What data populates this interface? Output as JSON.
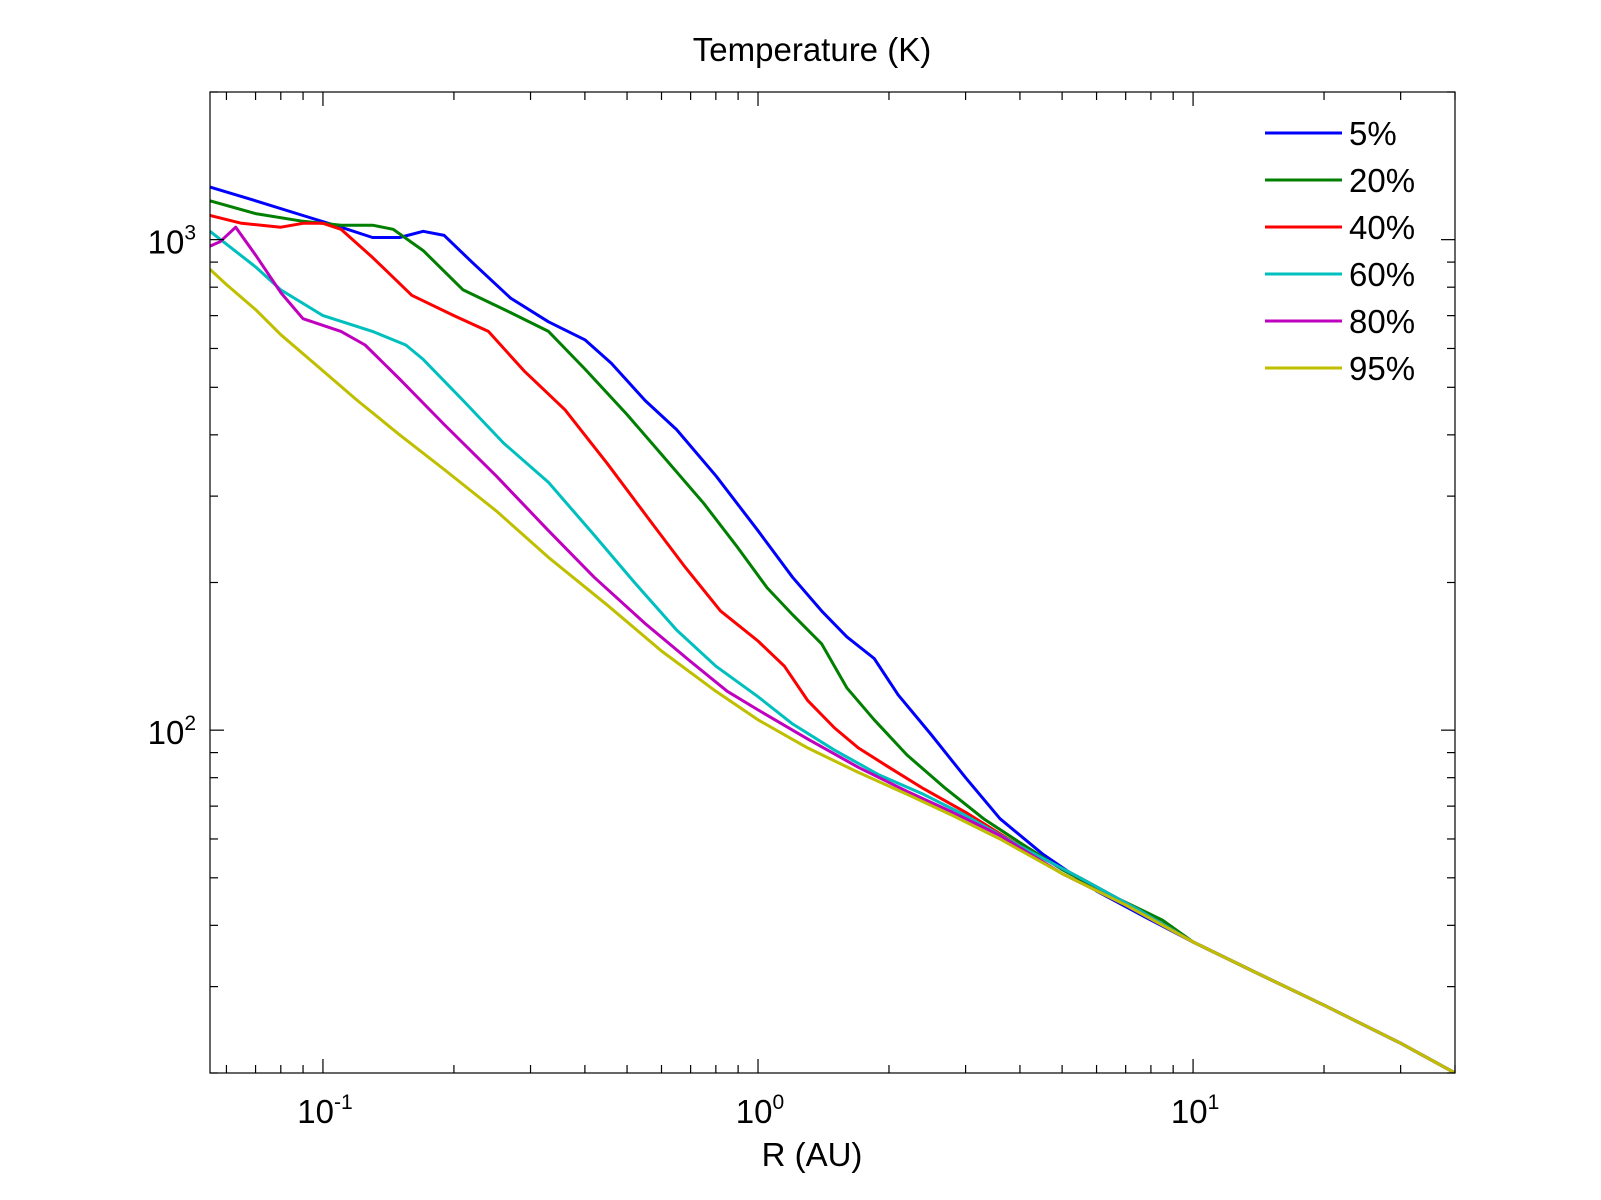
{
  "chart_data": {
    "type": "line",
    "title": "Temperature (K)",
    "xlabel": "R (AU)",
    "ylabel": "",
    "xscale": "log",
    "yscale": "log",
    "xlim": [
      0.055,
      40
    ],
    "ylim": [
      20,
      2000
    ],
    "x_ticks": [
      {
        "base": "10",
        "exp": "-1",
        "value": 0.1
      },
      {
        "base": "10",
        "exp": "0",
        "value": 1
      },
      {
        "base": "10",
        "exp": "1",
        "value": 10
      }
    ],
    "y_ticks": [
      {
        "base": "10",
        "exp": "2",
        "value": 100
      },
      {
        "base": "10",
        "exp": "3",
        "value": 1000
      }
    ],
    "legend_position": "top-right",
    "series": [
      {
        "name": "5%",
        "color": "#0000ff",
        "points": [
          [
            0.055,
            1280
          ],
          [
            0.07,
            1200
          ],
          [
            0.09,
            1120
          ],
          [
            0.11,
            1060
          ],
          [
            0.13,
            1010
          ],
          [
            0.15,
            1010
          ],
          [
            0.17,
            1040
          ],
          [
            0.19,
            1020
          ],
          [
            0.22,
            900
          ],
          [
            0.27,
            760
          ],
          [
            0.33,
            680
          ],
          [
            0.4,
            625
          ],
          [
            0.46,
            560
          ],
          [
            0.55,
            470
          ],
          [
            0.65,
            410
          ],
          [
            0.8,
            330
          ],
          [
            1.0,
            255
          ],
          [
            1.2,
            205
          ],
          [
            1.4,
            175
          ],
          [
            1.6,
            155
          ],
          [
            1.85,
            140
          ],
          [
            2.1,
            118
          ],
          [
            2.5,
            98
          ],
          [
            3.0,
            80
          ],
          [
            3.6,
            66
          ],
          [
            4.5,
            56
          ],
          [
            6.0,
            47
          ],
          [
            8.0,
            41
          ],
          [
            10.0,
            37
          ],
          [
            14.0,
            32
          ],
          [
            20.0,
            27.5
          ],
          [
            30.0,
            23
          ],
          [
            40.0,
            20
          ]
        ]
      },
      {
        "name": "20%",
        "color": "#007f00",
        "points": [
          [
            0.055,
            1200
          ],
          [
            0.07,
            1130
          ],
          [
            0.09,
            1090
          ],
          [
            0.11,
            1070
          ],
          [
            0.13,
            1070
          ],
          [
            0.145,
            1050
          ],
          [
            0.17,
            950
          ],
          [
            0.21,
            790
          ],
          [
            0.27,
            710
          ],
          [
            0.33,
            650
          ],
          [
            0.4,
            545
          ],
          [
            0.5,
            440
          ],
          [
            0.6,
            365
          ],
          [
            0.75,
            290
          ],
          [
            0.9,
            235
          ],
          [
            1.05,
            195
          ],
          [
            1.2,
            172
          ],
          [
            1.4,
            150
          ],
          [
            1.6,
            122
          ],
          [
            1.85,
            105
          ],
          [
            2.2,
            89
          ],
          [
            2.7,
            76
          ],
          [
            3.3,
            66
          ],
          [
            4.0,
            59
          ],
          [
            5.0,
            52
          ],
          [
            6.5,
            46
          ],
          [
            8.5,
            41
          ],
          [
            10.0,
            37
          ],
          [
            14.0,
            32
          ],
          [
            20.0,
            27.5
          ],
          [
            30.0,
            23
          ],
          [
            40.0,
            20
          ]
        ]
      },
      {
        "name": "40%",
        "color": "#ff0000",
        "points": [
          [
            0.055,
            1120
          ],
          [
            0.065,
            1080
          ],
          [
            0.08,
            1060
          ],
          [
            0.09,
            1080
          ],
          [
            0.1,
            1080
          ],
          [
            0.11,
            1050
          ],
          [
            0.13,
            920
          ],
          [
            0.16,
            770
          ],
          [
            0.2,
            700
          ],
          [
            0.24,
            650
          ],
          [
            0.29,
            540
          ],
          [
            0.36,
            450
          ],
          [
            0.45,
            350
          ],
          [
            0.56,
            270
          ],
          [
            0.68,
            215
          ],
          [
            0.82,
            175
          ],
          [
            1.0,
            152
          ],
          [
            1.15,
            135
          ],
          [
            1.3,
            115
          ],
          [
            1.5,
            101
          ],
          [
            1.7,
            92
          ],
          [
            2.0,
            84
          ],
          [
            2.4,
            76
          ],
          [
            3.0,
            68
          ],
          [
            4.0,
            58
          ],
          [
            5.5,
            50
          ],
          [
            7.5,
            43
          ],
          [
            10.0,
            37
          ],
          [
            14.0,
            32
          ],
          [
            20.0,
            27.5
          ],
          [
            30.0,
            23
          ],
          [
            40.0,
            20
          ]
        ]
      },
      {
        "name": "60%",
        "color": "#00bfbf",
        "points": [
          [
            0.055,
            1040
          ],
          [
            0.07,
            880
          ],
          [
            0.08,
            790
          ],
          [
            0.1,
            700
          ],
          [
            0.13,
            650
          ],
          [
            0.155,
            610
          ],
          [
            0.17,
            570
          ],
          [
            0.21,
            470
          ],
          [
            0.26,
            385
          ],
          [
            0.33,
            320
          ],
          [
            0.42,
            250
          ],
          [
            0.52,
            200
          ],
          [
            0.65,
            160
          ],
          [
            0.8,
            135
          ],
          [
            1.0,
            117
          ],
          [
            1.2,
            103
          ],
          [
            1.5,
            91
          ],
          [
            1.9,
            81
          ],
          [
            2.4,
            74
          ],
          [
            3.0,
            67
          ],
          [
            4.0,
            58
          ],
          [
            5.5,
            50
          ],
          [
            7.5,
            43
          ],
          [
            10.0,
            37
          ],
          [
            14.0,
            32
          ],
          [
            20.0,
            27.5
          ],
          [
            30.0,
            23
          ],
          [
            40.0,
            20
          ]
        ]
      },
      {
        "name": "80%",
        "color": "#bf00bf",
        "points": [
          [
            0.055,
            970
          ],
          [
            0.058,
            990
          ],
          [
            0.063,
            1060
          ],
          [
            0.07,
            930
          ],
          [
            0.08,
            780
          ],
          [
            0.09,
            690
          ],
          [
            0.11,
            650
          ],
          [
            0.125,
            610
          ],
          [
            0.15,
            520
          ],
          [
            0.19,
            420
          ],
          [
            0.25,
            330
          ],
          [
            0.33,
            255
          ],
          [
            0.42,
            205
          ],
          [
            0.55,
            165
          ],
          [
            0.7,
            138
          ],
          [
            0.85,
            120
          ],
          [
            1.0,
            110
          ],
          [
            1.3,
            96
          ],
          [
            1.7,
            84
          ],
          [
            2.2,
            75
          ],
          [
            2.8,
            68
          ],
          [
            3.6,
            61
          ],
          [
            5.0,
            51
          ],
          [
            7.0,
            44
          ],
          [
            10.0,
            37
          ],
          [
            14.0,
            32
          ],
          [
            20.0,
            27.5
          ],
          [
            30.0,
            23
          ],
          [
            40.0,
            20
          ]
        ]
      },
      {
        "name": "95%",
        "color": "#bfbf00",
        "points": [
          [
            0.055,
            870
          ],
          [
            0.06,
            810
          ],
          [
            0.07,
            720
          ],
          [
            0.08,
            640
          ],
          [
            0.1,
            540
          ],
          [
            0.12,
            470
          ],
          [
            0.15,
            400
          ],
          [
            0.19,
            340
          ],
          [
            0.25,
            280
          ],
          [
            0.33,
            225
          ],
          [
            0.45,
            180
          ],
          [
            0.6,
            145
          ],
          [
            0.8,
            120
          ],
          [
            1.0,
            105
          ],
          [
            1.3,
            92
          ],
          [
            1.7,
            82
          ],
          [
            2.2,
            74
          ],
          [
            2.8,
            67
          ],
          [
            3.6,
            60
          ],
          [
            5.0,
            51
          ],
          [
            7.0,
            44
          ],
          [
            10.0,
            37
          ],
          [
            14.0,
            32
          ],
          [
            20.0,
            27.5
          ],
          [
            30.0,
            23
          ],
          [
            40.0,
            20
          ]
        ]
      }
    ]
  }
}
